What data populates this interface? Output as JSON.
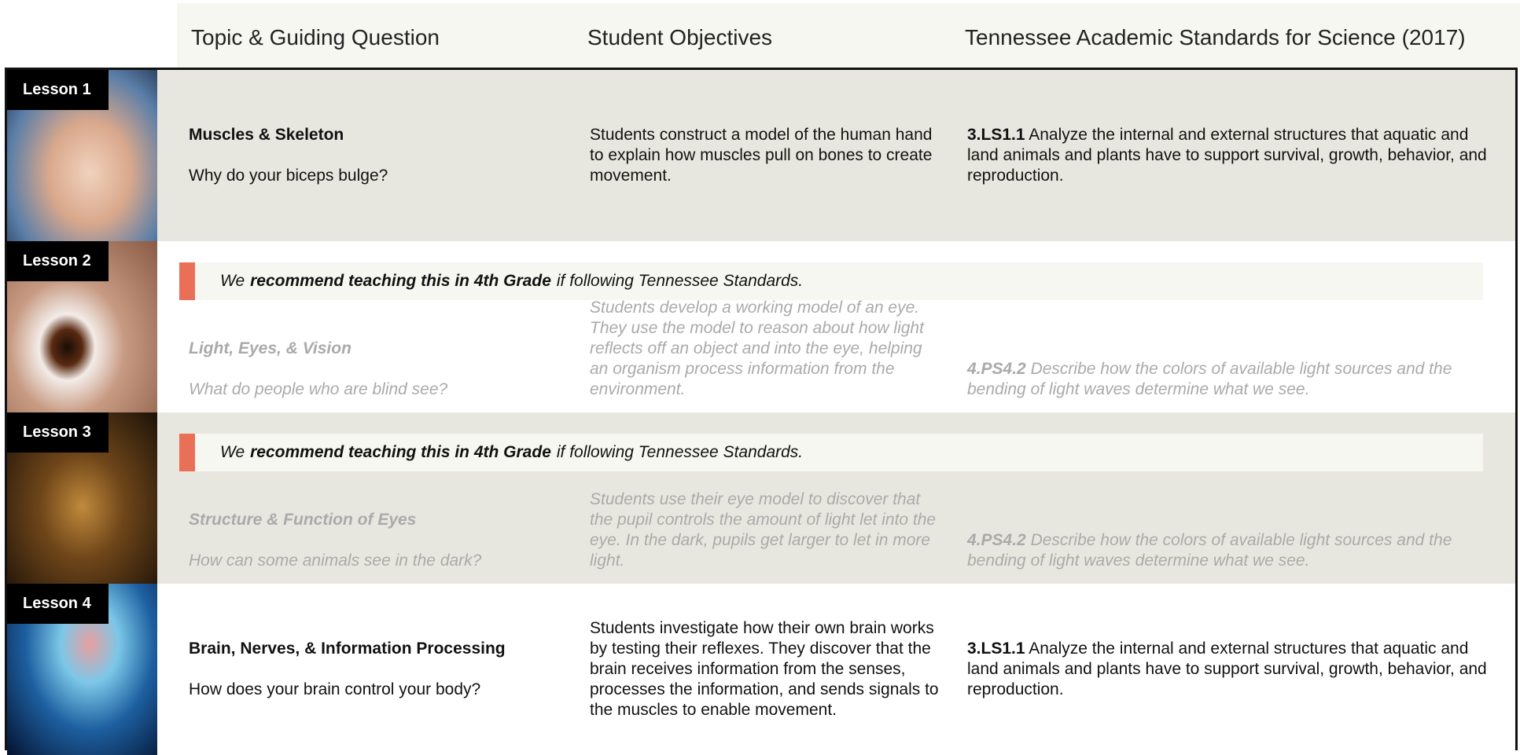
{
  "header": {
    "columns": [
      "Topic & Guiding Question",
      "Student Objectives",
      "Tennessee Academic Standards for Science (2017)"
    ]
  },
  "lessons": [
    {
      "label": "Lesson 1",
      "topic": "Muscles & Skeleton",
      "question": "Why do your biceps bulge?",
      "objectives": "Students construct a model of the human hand to explain how muscles pull on bones to create movement.",
      "standard_code": "3.LS1.1",
      "standard_text": "Analyze the internal and external structures that aquatic and land animals and plants have to support survival, growth, behavior, and reproduction."
    },
    {
      "label": "Lesson 2",
      "banner": {
        "prefix": "We",
        "emphasis": "recommend teaching this in 4th Grade",
        "suffix": "if following Tennessee Standards."
      },
      "topic": "Light, Eyes, & Vision",
      "question": "What do people who are blind see?",
      "objectives": "Students develop a working model of an eye. They use the model to reason about how light reflects off an object and into the eye, helping an organism process information from the environment.",
      "standard_code": "4.PS4.2",
      "standard_text": "Describe how the colors of available light sources and the bending of light waves determine what we see."
    },
    {
      "label": "Lesson 3",
      "banner": {
        "prefix": "We",
        "emphasis": "recommend teaching this in 4th Grade",
        "suffix": "if following Tennessee Standards."
      },
      "topic": "Structure & Function of Eyes",
      "question": "How can some animals see in the dark?",
      "objectives": "Students use their eye model to discover that the pupil controls the amount of light let into the eye. In the dark, pupils get larger to let in more light.",
      "standard_code": "4.PS4.2",
      "standard_text": "Describe how the colors of available light sources and the bending of light waves determine what we see."
    },
    {
      "label": "Lesson 4",
      "topic": "Brain, Nerves, & Information Processing",
      "question": "How does your brain control your body?",
      "objectives": "Students investigate how their own brain works by testing their reflexes. They discover that the brain receives information from the senses, processes the information, and sends signals to the muscles to enable movement.",
      "standard_code": "3.LS1.1",
      "standard_text": "Analyze the internal and external structures that aquatic and land animals and plants have to support survival, growth, behavior, and reproduction."
    }
  ]
}
